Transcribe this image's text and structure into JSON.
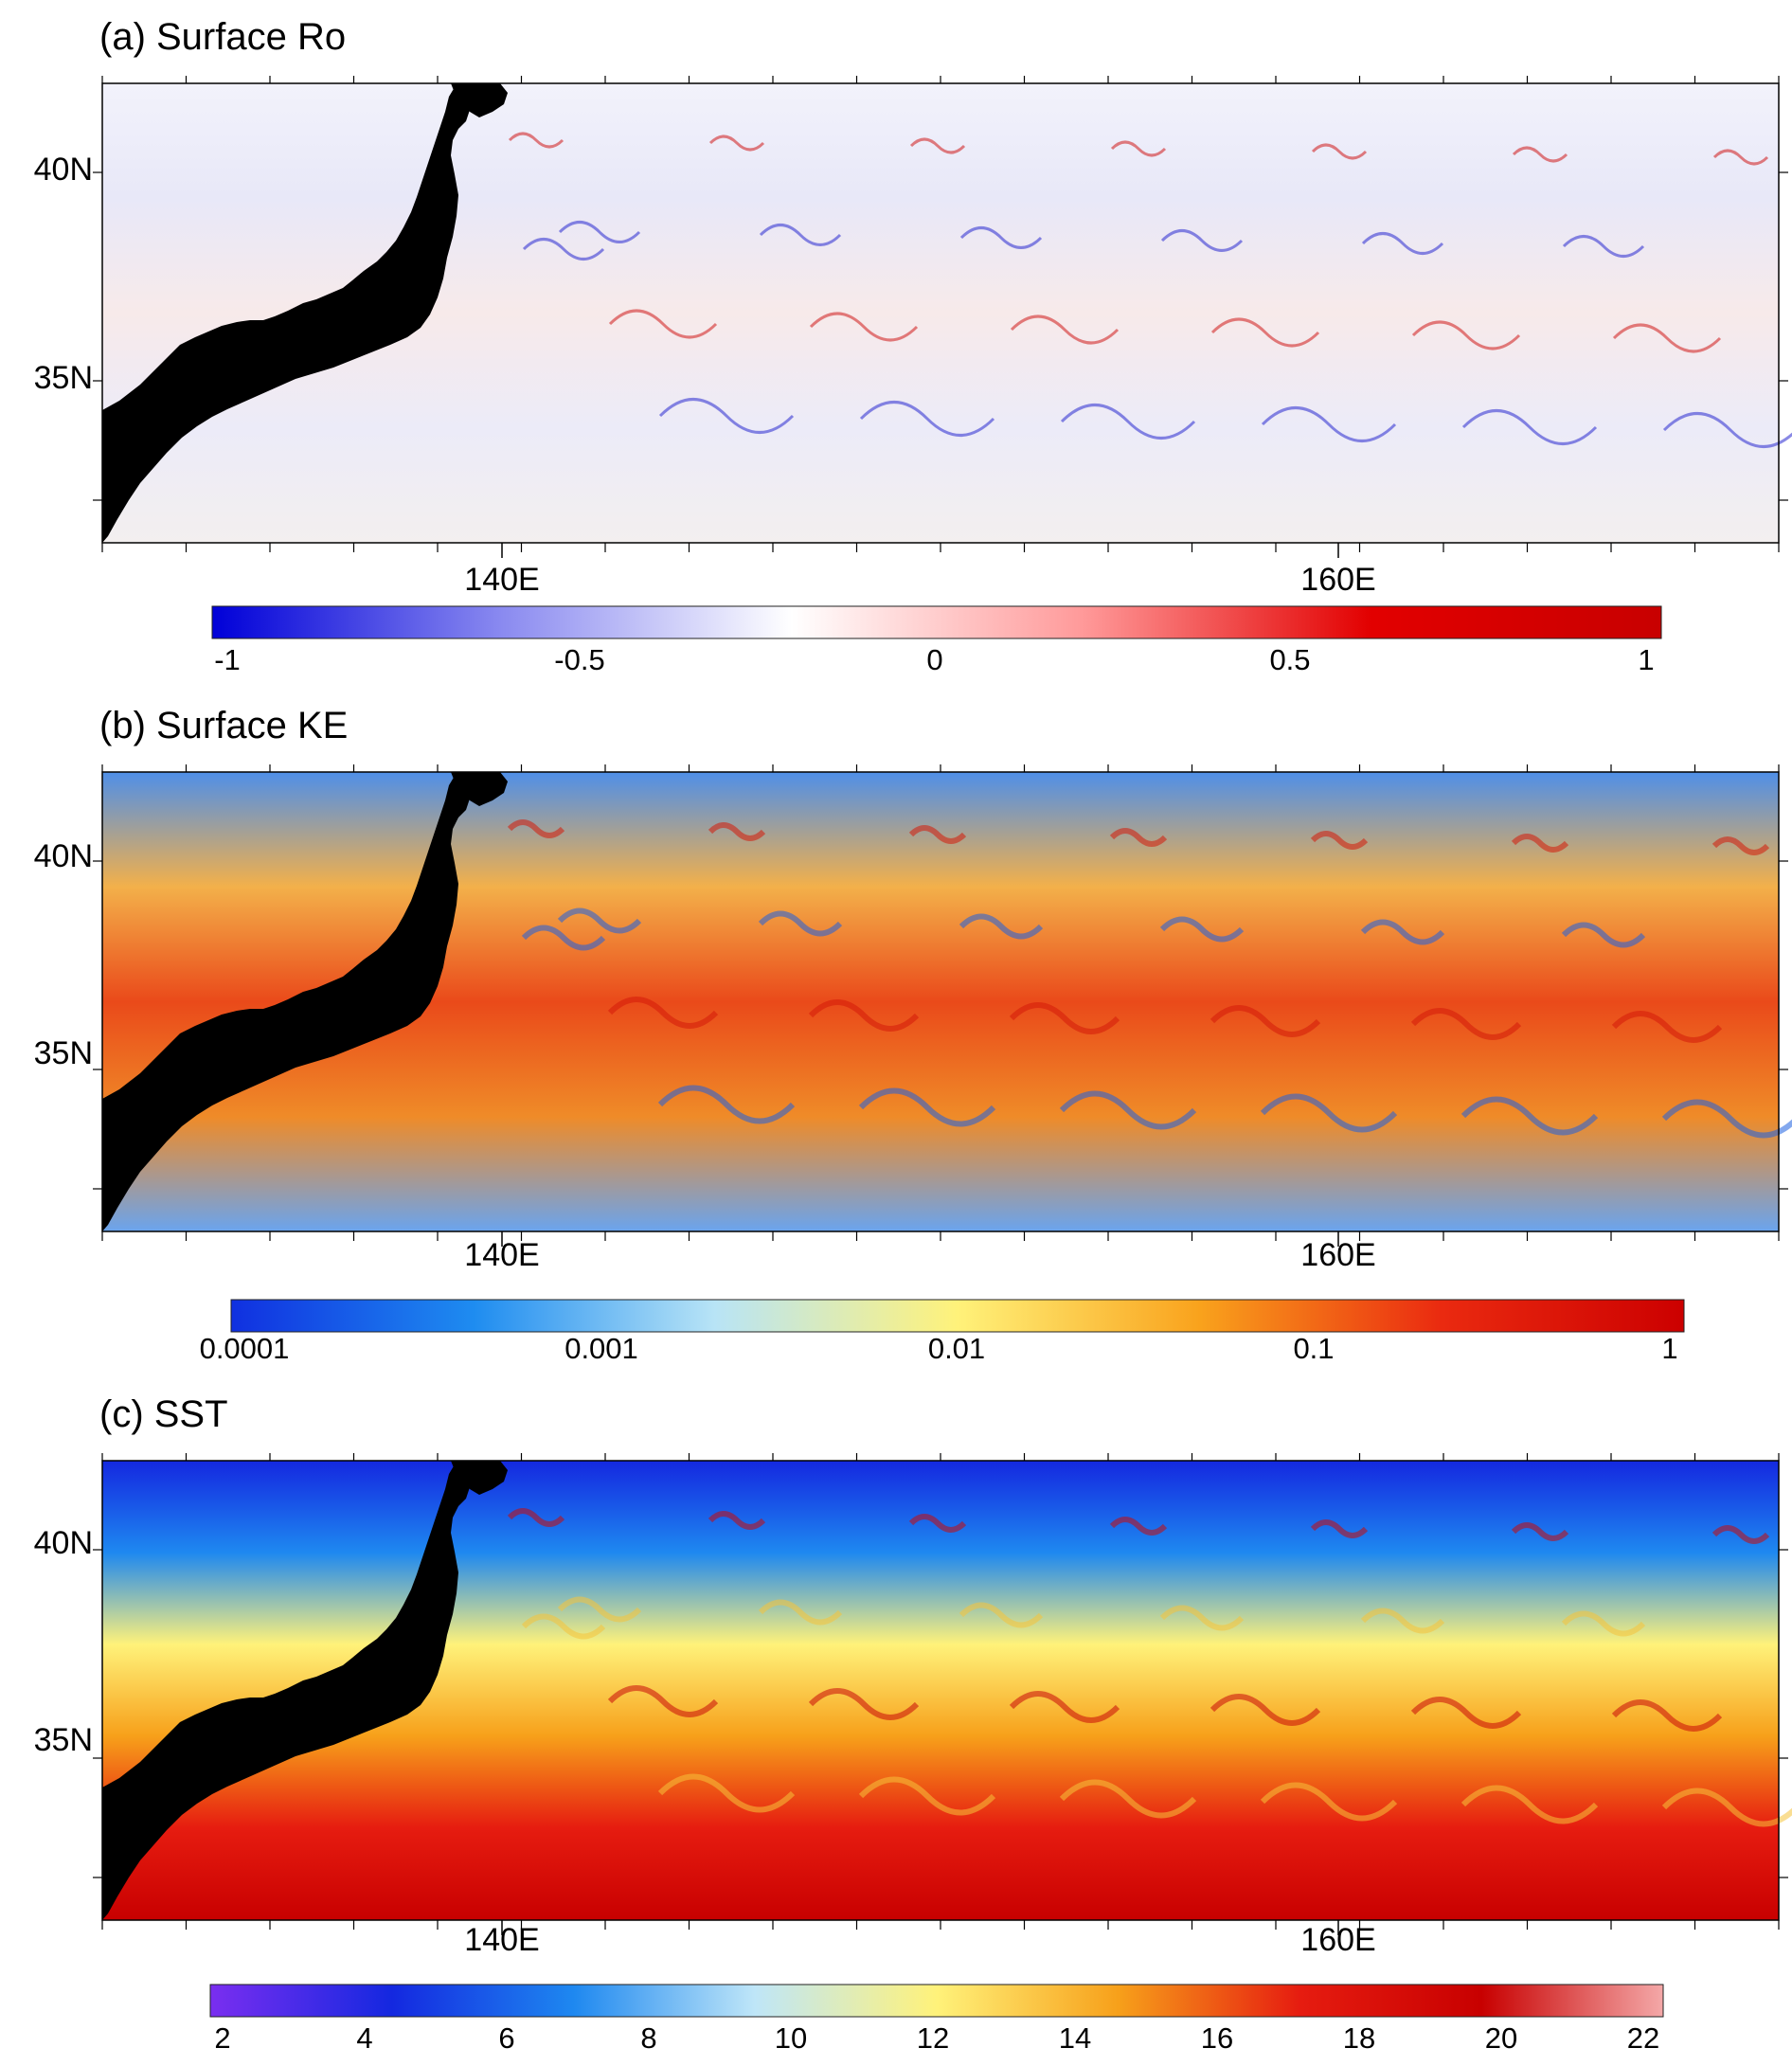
{
  "chart_data": [
    {
      "type": "heatmap",
      "title": "(a) Surface Ro",
      "x_ticks": [
        "140E",
        "160E"
      ],
      "y_ticks": [
        "40N",
        "35N"
      ],
      "colorbar": {
        "scale": "linear",
        "ticks": [
          "-1",
          "-0.5",
          "0",
          "0.5",
          "1"
        ],
        "colors": [
          "#0000d8",
          "#8a8af0",
          "#ffffff",
          "#ff9a9a",
          "#e20000",
          "#c80000"
        ]
      },
      "land_color": "#000000"
    },
    {
      "type": "heatmap",
      "title": "(b) Surface KE",
      "x_ticks": [
        "140E",
        "160E"
      ],
      "y_ticks": [
        "40N",
        "35N"
      ],
      "colorbar": {
        "scale": "log",
        "ticks": [
          "0.0001",
          "0.001",
          "0.01",
          "0.1",
          "1"
        ],
        "colors": [
          "#1030e0",
          "#1e8cf0",
          "#b8e4f6",
          "#fff27a",
          "#f9a21c",
          "#ea2a10",
          "#cc0000"
        ]
      },
      "land_color": "#000000"
    },
    {
      "type": "heatmap",
      "title": "(c) SST",
      "x_ticks": [
        "140E",
        "160E"
      ],
      "y_ticks": [
        "40N",
        "35N"
      ],
      "colorbar": {
        "scale": "linear",
        "ticks": [
          "2",
          "4",
          "6",
          "8",
          "10",
          "12",
          "14",
          "16",
          "18",
          "20",
          "22"
        ],
        "colors": [
          "#7a2ef0",
          "#1428e0",
          "#1e88f0",
          "#bfe6f8",
          "#fff27a",
          "#f7a01a",
          "#e61c10",
          "#c80000",
          "#f4a8a8"
        ]
      },
      "land_color": "#000000"
    }
  ]
}
